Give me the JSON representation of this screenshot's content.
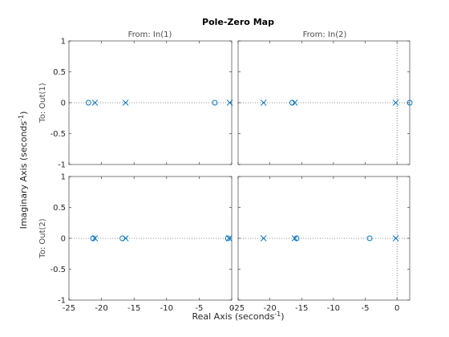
{
  "chart_data": {
    "type": "scatter",
    "title": "Pole-Zero Map",
    "xlabel": "Real Axis",
    "xlabel_units": "(seconds",
    "ylabel": "Imaginary Axis",
    "ylabel_units": "(seconds",
    "unit_exponent": "-1",
    "unit_close": ")",
    "input_labels": [
      "From: In(1)",
      "From: In(2)"
    ],
    "output_labels": [
      "To: Out(1)",
      "To: Out(2)"
    ],
    "colors": {
      "marker": "#0072bd",
      "axes": "#262626",
      "guide": "#262626"
    },
    "x_ticks": [
      -25,
      -20,
      -15,
      -10,
      -5,
      0
    ],
    "x_tick_labels_left": [
      "-25",
      "-20",
      "-15",
      "-10",
      "-5",
      "0"
    ],
    "x_tick_labels_right": [
      "-25",
      "-20",
      "-15",
      "-10",
      "-5",
      "0"
    ],
    "y_ticks": [
      -1,
      -0.5,
      0,
      0.5,
      1
    ],
    "y_tick_labels": [
      "-1",
      "-0.5",
      "0",
      "0.5",
      "1"
    ],
    "axes": [
      {
        "row": 0,
        "col": 0,
        "xlim": [
          -25,
          0
        ],
        "ylim": [
          -1,
          1
        ],
        "poles": [
          {
            "re": -21,
            "im": 0
          },
          {
            "re": -16.3,
            "im": 0
          },
          {
            "re": -0.3,
            "im": 0
          }
        ],
        "zeros": [
          {
            "re": -22,
            "im": 0
          },
          {
            "re": -2.6,
            "im": 0
          }
        ]
      },
      {
        "row": 0,
        "col": 1,
        "xlim": [
          -25,
          2
        ],
        "ylim": [
          -1,
          1
        ],
        "poles": [
          {
            "re": -21,
            "im": 0
          },
          {
            "re": -16.1,
            "im": 0
          },
          {
            "re": -0.2,
            "im": 0
          }
        ],
        "zeros": [
          {
            "re": -16.5,
            "im": 0
          },
          {
            "re": 2,
            "im": 0
          }
        ]
      },
      {
        "row": 1,
        "col": 0,
        "xlim": [
          -25,
          0
        ],
        "ylim": [
          -1,
          1
        ],
        "poles": [
          {
            "re": -21,
            "im": 0
          },
          {
            "re": -16.3,
            "im": 0
          },
          {
            "re": -0.4,
            "im": 0
          }
        ],
        "zeros": [
          {
            "re": -21.3,
            "im": 0
          },
          {
            "re": -16.8,
            "im": 0
          },
          {
            "re": -0.6,
            "im": 0
          }
        ]
      },
      {
        "row": 1,
        "col": 1,
        "xlim": [
          -25,
          2
        ],
        "ylim": [
          -1,
          1
        ],
        "poles": [
          {
            "re": -21,
            "im": 0
          },
          {
            "re": -16.1,
            "im": 0
          },
          {
            "re": -0.2,
            "im": 0
          }
        ],
        "zeros": [
          {
            "re": -15.8,
            "im": 0
          },
          {
            "re": -4.3,
            "im": 0
          }
        ]
      }
    ]
  }
}
